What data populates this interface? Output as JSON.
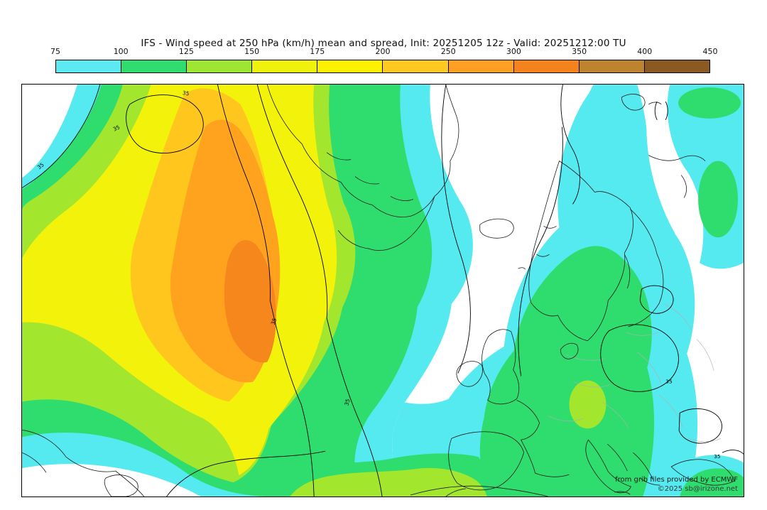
{
  "header": {
    "title": "IFS - Wind speed at 250 hPa (km/h) mean and spread, Init: 20251205 12z - Valid: 20251212:00 TU"
  },
  "colorbar": {
    "units": "km/h",
    "ticks": [
      "75",
      "100",
      "125",
      "150",
      "175",
      "200",
      "250",
      "300",
      "350",
      "400",
      "450"
    ],
    "colors": [
      "#5ce9f2",
      "#2fdd6e",
      "#9fe633",
      "#eef20c",
      "#fdf000",
      "#ffc922",
      "#ffa023",
      "#f5831d",
      "#bd832e",
      "#8a5a22"
    ]
  },
  "map": {
    "contour_label": "35",
    "attribution_line1": "from grib files provided by ECMWF",
    "attribution_line2": "©2025 sb@irizone.net",
    "fill_colors": {
      "cyan": "#55e9f0",
      "green": "#2fdd6e",
      "chartreuse": "#a3e62e",
      "yellow": "#f2f20a",
      "gold": "#ffc61e",
      "orange": "#ffa21e",
      "dark_orange": "#f5871d"
    }
  },
  "chart_data": {
    "type": "heatmap",
    "title": "IFS - Wind speed at 250 hPa (km/h) mean and spread, Init: 20251205 12z - Valid: 20251212:00 TU",
    "model": "IFS",
    "variable": "wind speed at 250 hPa",
    "units": "km/h",
    "init": "20251205 12z",
    "valid": "20251212:00 TU",
    "legend_position": "top",
    "color_scale_levels": [
      75,
      100,
      125,
      150,
      175,
      200,
      250,
      300,
      350,
      400,
      450
    ],
    "color_scale_colors": [
      "#5ce9f2",
      "#2fdd6e",
      "#9fe633",
      "#eef20c",
      "#fdf000",
      "#ffc922",
      "#ffa023",
      "#f5831d",
      "#bd832e",
      "#8a5a22"
    ],
    "spread_contour_value": 35,
    "features": [
      {
        "region": "western/central North Atlantic",
        "mean_speed_kmh": "200-300",
        "description": "strong NE-SW jet streak with orange core"
      },
      {
        "region": "British Isles / North Sea / Scandinavia",
        "mean_speed_kmh": "100-150",
        "description": "secondary wind band with green core"
      },
      {
        "region": "Greenland and central Arctic",
        "mean_speed_kmh": "< 75",
        "description": "weak winds, unshaded"
      },
      {
        "region": "southern edge (Iberia / Mediterranean approaches)",
        "mean_speed_kmh": "100-150",
        "description": "band along bottom edge"
      }
    ]
  }
}
